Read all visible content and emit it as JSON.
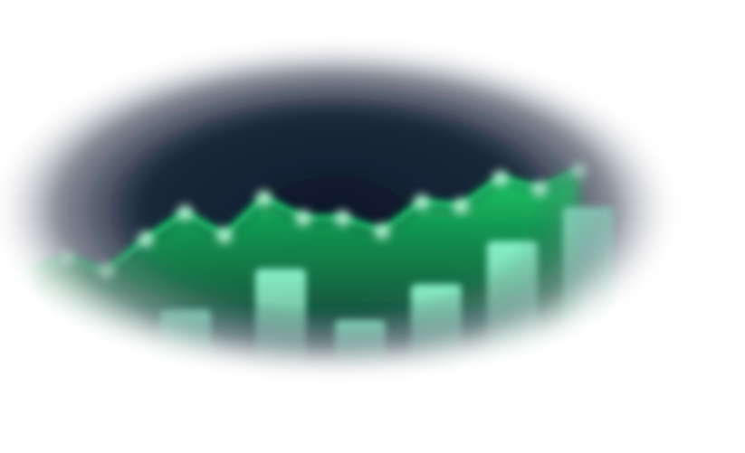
{
  "chart_data": {
    "type": "bar",
    "title": "",
    "xlabel": "",
    "ylabel": "",
    "ylim": [
      0,
      100
    ],
    "grid": false,
    "legend": "none",
    "bars": [
      {
        "value": 18
      },
      {
        "value": 42
      },
      {
        "value": 12
      },
      {
        "value": 33
      },
      {
        "value": 58
      },
      {
        "value": 78
      }
    ],
    "line": [
      {
        "value": 48
      },
      {
        "value": 58
      },
      {
        "value": 48
      },
      {
        "value": 72
      },
      {
        "value": 92
      },
      {
        "value": 75
      },
      {
        "value": 103
      },
      {
        "value": 88
      },
      {
        "value": 88
      },
      {
        "value": 78
      },
      {
        "value": 100
      },
      {
        "value": 97
      },
      {
        "value": 118
      },
      {
        "value": 110
      },
      {
        "value": 124
      }
    ],
    "colors": {
      "background": "#ffffff",
      "vignette": "#0b1a2e",
      "line": "#22e37a",
      "area": "#12c35e",
      "bar": "#7ef2c4"
    }
  }
}
